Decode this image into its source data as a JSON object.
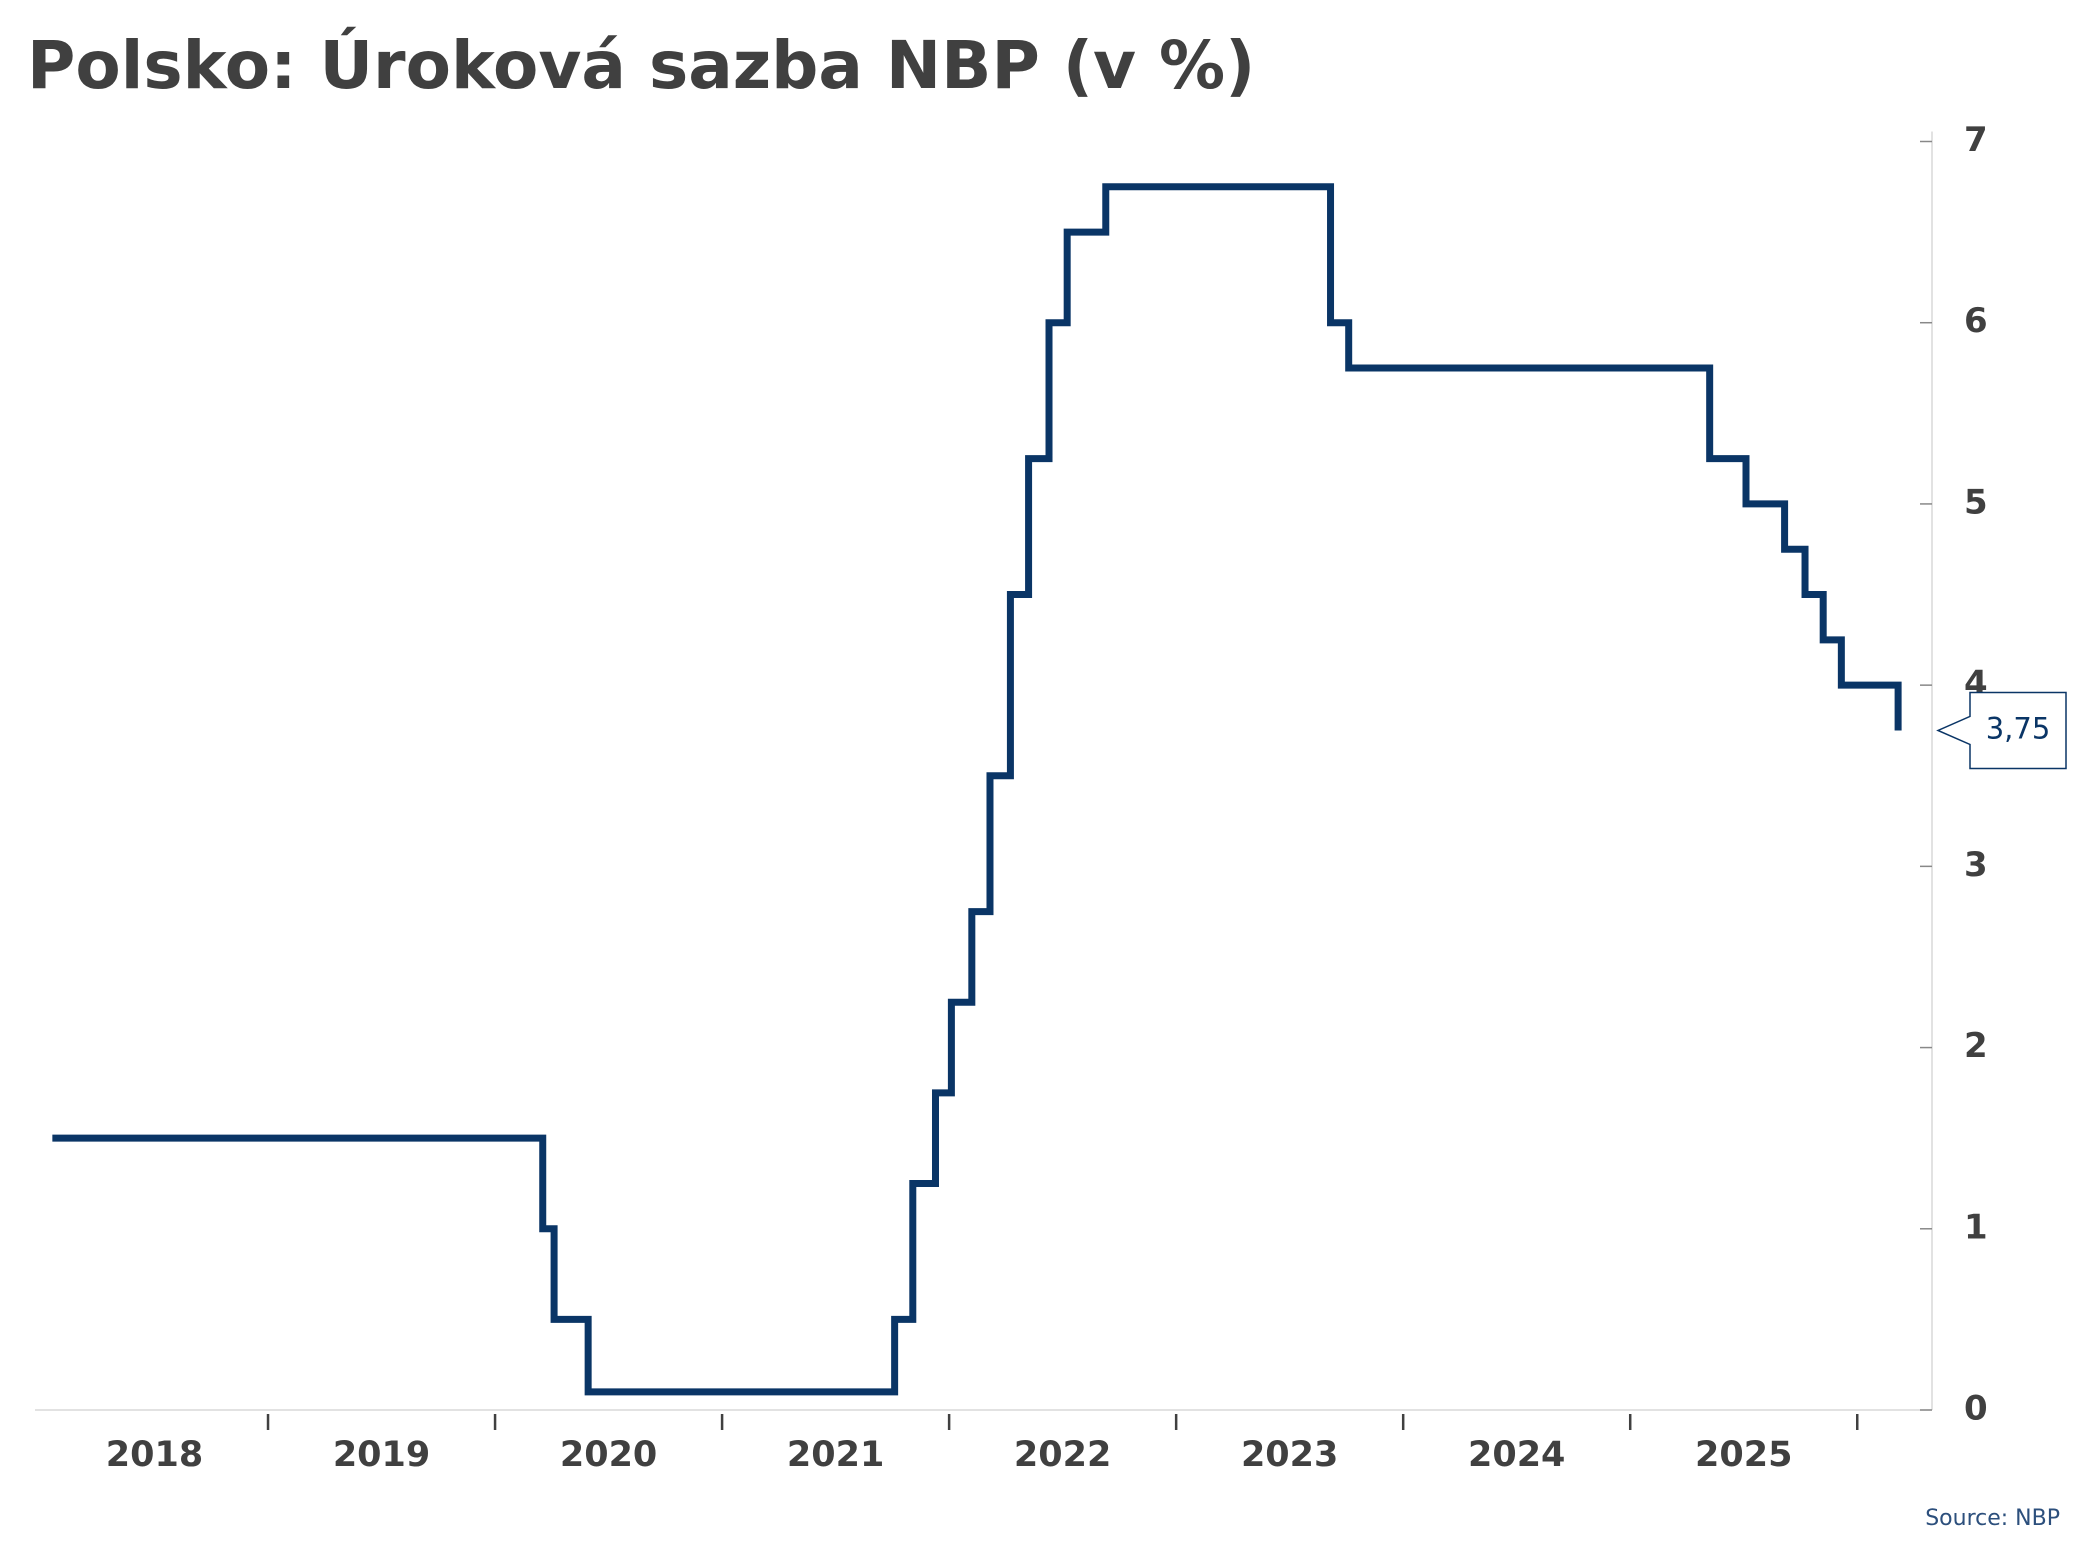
{
  "chart_data": {
    "type": "line",
    "title": "Polsko: Úroková sazba NBP (v %)",
    "source": "Source: NBP",
    "step": "post",
    "color": "#0a3566",
    "x": [
      2018.05,
      2020.21,
      2020.26,
      2020.41,
      2021.76,
      2021.84,
      2021.94,
      2022.01,
      2022.1,
      2022.18,
      2022.27,
      2022.35,
      2022.44,
      2022.52,
      2022.69,
      2023.68,
      2023.76,
      2025.35,
      2025.51,
      2025.68,
      2025.77,
      2025.85,
      2025.93,
      2026.18
    ],
    "values": [
      1.5,
      1.0,
      0.5,
      0.1,
      0.5,
      1.25,
      1.75,
      2.25,
      2.75,
      3.5,
      4.5,
      5.25,
      6.0,
      6.5,
      6.75,
      6.0,
      5.75,
      5.25,
      5.0,
      4.75,
      4.5,
      4.25,
      4.0,
      3.75
    ],
    "xlim": [
      2018,
      2026.25
    ],
    "xticks": [
      {
        "value": 2018.5,
        "label": "2018"
      },
      {
        "value": 2019.5,
        "label": "2019"
      },
      {
        "value": 2020.5,
        "label": "2020"
      },
      {
        "value": 2021.5,
        "label": "2021"
      },
      {
        "value": 2022.5,
        "label": "2022"
      },
      {
        "value": 2023.5,
        "label": "2023"
      },
      {
        "value": 2024.5,
        "label": "2024"
      },
      {
        "value": 2025.5,
        "label": "2025"
      }
    ],
    "ylim": [
      0,
      7
    ],
    "yticks": [
      0,
      1,
      2,
      3,
      4,
      5,
      6,
      7
    ],
    "y_axis_side": "right",
    "annotations": [
      {
        "x": 2026.18,
        "y": 3.75,
        "text": "3,75"
      }
    ]
  }
}
